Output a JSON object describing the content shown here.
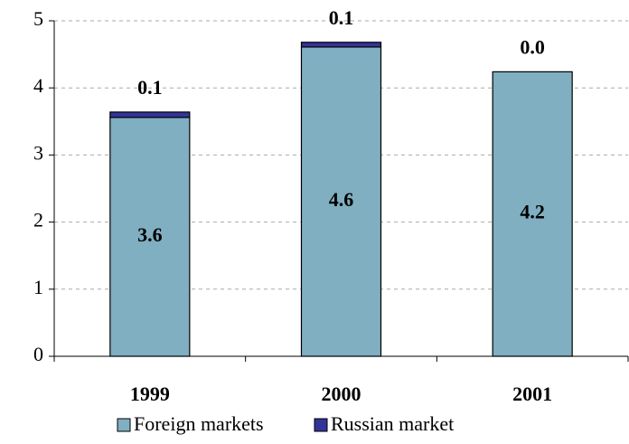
{
  "chart_data": {
    "type": "stacked_bar",
    "categories": [
      "1999",
      "2000",
      "2001"
    ],
    "series": [
      {
        "name": "Foreign markets",
        "color": "#7fafc1",
        "values": [
          3.56,
          4.61,
          4.24
        ],
        "value_labels": [
          "3.6",
          "4.6",
          "4.2"
        ]
      },
      {
        "name": "Russian market",
        "color": "#333399",
        "values": [
          0.08,
          0.07,
          0
        ],
        "value_labels": [
          "0.1",
          "0.1",
          "0.0"
        ]
      }
    ],
    "ylim": [
      0,
      5
    ],
    "yticks": [
      0,
      1,
      2,
      3,
      4,
      5
    ],
    "grid": true,
    "legend": "bottom"
  }
}
